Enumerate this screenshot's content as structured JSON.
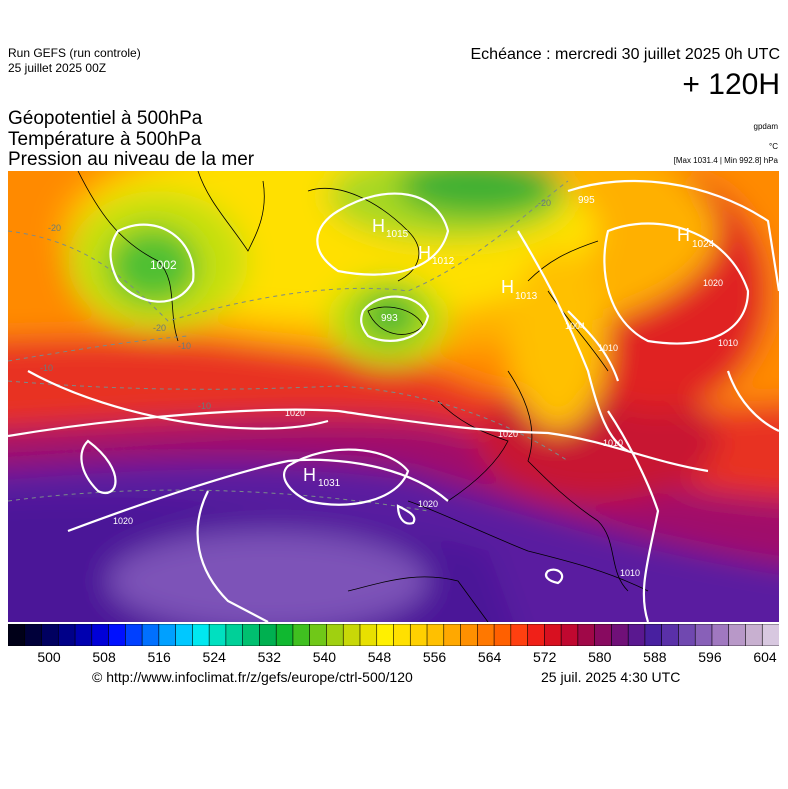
{
  "header": {
    "run_title": "Run GEFS (run controle)",
    "run_date": "25 juillet 2025 00Z",
    "valid_time": "Echéance : mercredi 30 juillet 2025 0h UTC",
    "lead_time": "+ 120H"
  },
  "params": {
    "p1": "Géopotentiel à 500hPa",
    "p2": "Température à 500hPa",
    "p3": "Pression au niveau de la mer"
  },
  "units": {
    "geopotential": "gpdam",
    "temperature": "°C",
    "range": "[Max 1031.4 | Min 992.8] hPa"
  },
  "colorbar": {
    "min": 500,
    "max": 604,
    "step": 2,
    "tick_labels": [
      "500",
      "508",
      "516",
      "524",
      "532",
      "540",
      "548",
      "556",
      "564",
      "572",
      "580",
      "588",
      "596",
      "604"
    ]
  },
  "pressure_centers": [
    {
      "type": "L",
      "value": "1002"
    },
    {
      "type": "H",
      "value": "1015"
    },
    {
      "type": "H",
      "value": "1012"
    },
    {
      "type": "L",
      "value": "993"
    },
    {
      "type": "L",
      "value": "995"
    },
    {
      "type": "H",
      "value": "1024"
    },
    {
      "type": "H",
      "value": "1013"
    },
    {
      "type": "H",
      "value": "1031"
    }
  ],
  "isobar_labels": [
    "1020",
    "1020",
    "1020",
    "1020",
    "1004",
    "1010",
    "1010",
    "1020",
    "1010",
    "1010"
  ],
  "isotherm_labels": [
    "-20",
    "-20",
    "-10",
    "-10",
    "-10",
    "-20"
  ],
  "footer": {
    "credit": "© http://www.infoclimat.fr/z/gefs/europe/ctrl-500/120",
    "timestamp": "25 juil. 2025  4:30 UTC"
  },
  "colors": {
    "isobar": "#ffffff",
    "isotherm": "#7a8a8a",
    "coastline": "#000000"
  }
}
